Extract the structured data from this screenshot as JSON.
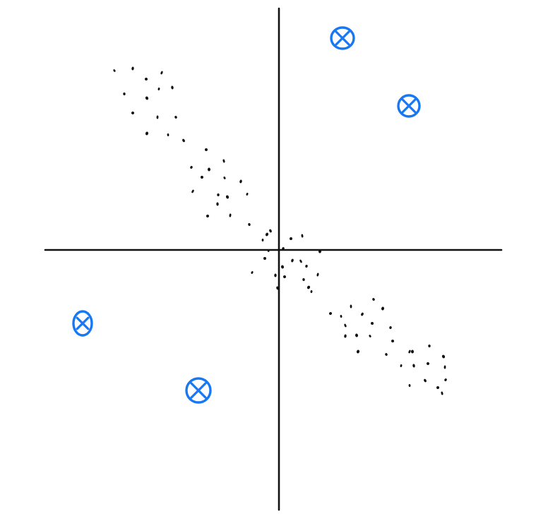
{
  "colors": {
    "background": "#ffffff",
    "ink": "#111111",
    "marker": "#1877f2"
  },
  "markers": {
    "icon": "circled-x-icon",
    "count": 4
  }
}
